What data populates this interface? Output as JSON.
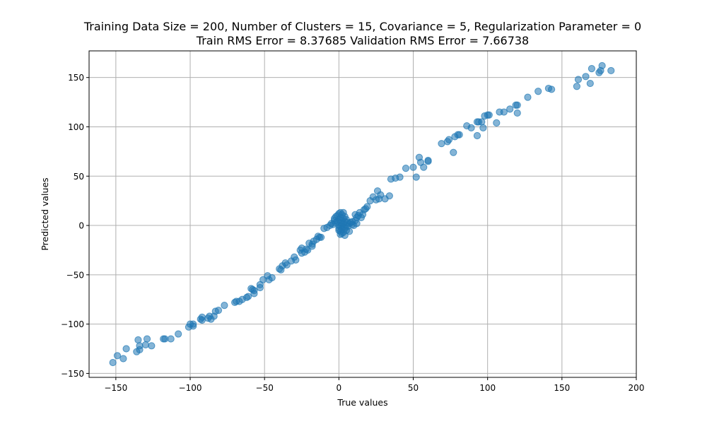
{
  "chart_data": {
    "type": "scatter",
    "title_lines": [
      "Training Data Size = 200, Number of Clusters = 15, Covariance = 5, Regularization Parameter = 0",
      "Train RMS Error = 8.37685 Validation RMS Error = 7.66738"
    ],
    "xlabel": "True values",
    "ylabel": "Predicted values",
    "xlim": [
      -168,
      200
    ],
    "ylim": [
      -154,
      177
    ],
    "xticks": [
      -150,
      -100,
      -50,
      0,
      50,
      100,
      150,
      200
    ],
    "yticks": [
      -150,
      -100,
      -50,
      0,
      50,
      100,
      150
    ],
    "grid": true,
    "point_color": "#1f77b4",
    "point_alpha": 0.55,
    "points": [
      [
        -152,
        -139
      ],
      [
        -149,
        -132
      ],
      [
        -145,
        -135
      ],
      [
        -143,
        -125
      ],
      [
        -136,
        -128
      ],
      [
        -135,
        -116
      ],
      [
        -134,
        -126
      ],
      [
        -134,
        -122
      ],
      [
        -130,
        -121
      ],
      [
        -129,
        -115
      ],
      [
        -126,
        -122
      ],
      [
        -118,
        -115
      ],
      [
        -117,
        -115
      ],
      [
        -113,
        -115
      ],
      [
        -108,
        -110
      ],
      [
        -101,
        -103
      ],
      [
        -100,
        -100
      ],
      [
        -98,
        -100
      ],
      [
        -98,
        -102
      ],
      [
        -93,
        -95
      ],
      [
        -92,
        -93
      ],
      [
        -92,
        -96
      ],
      [
        -88,
        -94
      ],
      [
        -87,
        -92
      ],
      [
        -86,
        -95
      ],
      [
        -84,
        -92
      ],
      [
        -83,
        -87
      ],
      [
        -81,
        -86
      ],
      [
        -77,
        -81
      ],
      [
        -70,
        -78
      ],
      [
        -69,
        -77
      ],
      [
        -67,
        -77
      ],
      [
        -65,
        -75
      ],
      [
        -62,
        -73
      ],
      [
        -61,
        -72
      ],
      [
        -59,
        -64
      ],
      [
        -58,
        -65
      ],
      [
        -57,
        -66
      ],
      [
        -57,
        -69
      ],
      [
        -53,
        -60
      ],
      [
        -53,
        -63
      ],
      [
        -51,
        -55
      ],
      [
        -48,
        -51
      ],
      [
        -47,
        -55
      ],
      [
        -45,
        -53
      ],
      [
        -40,
        -44
      ],
      [
        -39,
        -45
      ],
      [
        -38,
        -41
      ],
      [
        -36,
        -38
      ],
      [
        -35,
        -40
      ],
      [
        -32,
        -36
      ],
      [
        -30,
        -32
      ],
      [
        -29,
        -35
      ],
      [
        -26,
        -25
      ],
      [
        -25,
        -23
      ],
      [
        -25,
        -28
      ],
      [
        -23,
        -27
      ],
      [
        -22,
        -24
      ],
      [
        -21,
        -25
      ],
      [
        -20,
        -18
      ],
      [
        -18,
        -19
      ],
      [
        -18,
        -21
      ],
      [
        -17,
        -16
      ],
      [
        -15,
        -14
      ],
      [
        -14,
        -11
      ],
      [
        -13,
        -12
      ],
      [
        -12,
        -12
      ],
      [
        -10,
        -3
      ],
      [
        -8,
        -2
      ],
      [
        -6,
        0
      ],
      [
        -5,
        2
      ],
      [
        -4,
        1
      ],
      [
        -3,
        5
      ],
      [
        -3,
        7
      ],
      [
        -2,
        3
      ],
      [
        -2,
        9
      ],
      [
        -1,
        4
      ],
      [
        -1,
        10
      ],
      [
        0,
        12
      ],
      [
        0,
        6
      ],
      [
        0,
        0
      ],
      [
        0,
        -3
      ],
      [
        0,
        -5
      ],
      [
        1,
        13
      ],
      [
        1,
        8
      ],
      [
        1,
        3
      ],
      [
        1,
        -1
      ],
      [
        1,
        -6
      ],
      [
        1,
        -9
      ],
      [
        2,
        11
      ],
      [
        2,
        5
      ],
      [
        2,
        0
      ],
      [
        2,
        -4
      ],
      [
        2,
        -8
      ],
      [
        3,
        13
      ],
      [
        3,
        7
      ],
      [
        3,
        2
      ],
      [
        3,
        -2
      ],
      [
        3,
        -7
      ],
      [
        4,
        9
      ],
      [
        4,
        4
      ],
      [
        4,
        -3
      ],
      [
        4,
        -10
      ],
      [
        5,
        6
      ],
      [
        5,
        0
      ],
      [
        5,
        -5
      ],
      [
        6,
        3
      ],
      [
        6,
        -1
      ],
      [
        7,
        2
      ],
      [
        7,
        -6
      ],
      [
        8,
        3
      ],
      [
        9,
        1
      ],
      [
        9,
        4
      ],
      [
        10,
        0
      ],
      [
        11,
        5
      ],
      [
        11,
        11
      ],
      [
        12,
        2
      ],
      [
        12,
        8
      ],
      [
        13,
        10
      ],
      [
        14,
        13
      ],
      [
        15,
        8
      ],
      [
        16,
        11
      ],
      [
        17,
        16
      ],
      [
        18,
        17
      ],
      [
        19,
        19
      ],
      [
        21,
        25
      ],
      [
        23,
        29
      ],
      [
        25,
        26
      ],
      [
        26,
        35
      ],
      [
        27,
        27
      ],
      [
        28,
        31
      ],
      [
        31,
        27
      ],
      [
        34,
        30
      ],
      [
        35,
        47
      ],
      [
        38,
        48
      ],
      [
        41,
        49
      ],
      [
        45,
        58
      ],
      [
        50,
        59
      ],
      [
        52,
        49
      ],
      [
        54,
        69
      ],
      [
        55,
        64
      ],
      [
        57,
        59
      ],
      [
        60,
        66
      ],
      [
        60,
        65
      ],
      [
        69,
        83
      ],
      [
        73,
        85
      ],
      [
        74,
        87
      ],
      [
        77,
        74
      ],
      [
        78,
        90
      ],
      [
        80,
        92
      ],
      [
        81,
        92
      ],
      [
        86,
        101
      ],
      [
        89,
        99
      ],
      [
        93,
        105
      ],
      [
        93,
        91
      ],
      [
        94,
        105
      ],
      [
        96,
        105
      ],
      [
        97,
        99
      ],
      [
        98,
        111
      ],
      [
        100,
        112
      ],
      [
        101,
        112
      ],
      [
        106,
        104
      ],
      [
        108,
        115
      ],
      [
        111,
        115
      ],
      [
        115,
        118
      ],
      [
        119,
        122
      ],
      [
        120,
        122
      ],
      [
        120,
        114
      ],
      [
        127,
        130
      ],
      [
        134,
        136
      ],
      [
        141,
        139
      ],
      [
        143,
        138
      ],
      [
        160,
        141
      ],
      [
        161,
        148
      ],
      [
        166,
        151
      ],
      [
        169,
        144
      ],
      [
        170,
        159
      ],
      [
        175,
        155
      ],
      [
        176,
        157
      ],
      [
        177,
        162
      ],
      [
        183,
        157
      ]
    ]
  }
}
